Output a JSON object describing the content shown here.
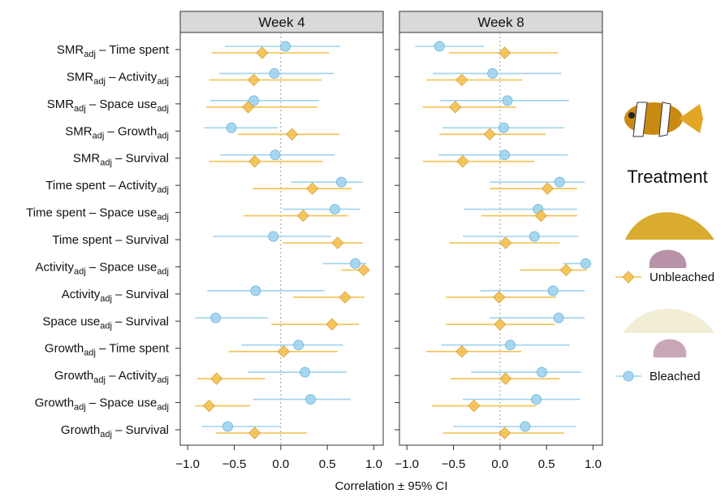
{
  "chart_data": {
    "type": "forest",
    "categories": [
      {
        "from": [
          "SMR",
          "adj"
        ],
        "sep": "–",
        "to": [
          "Time spent"
        ]
      },
      {
        "from": [
          "SMR",
          "adj"
        ],
        "sep": "–",
        "to": [
          "Activity",
          "adj"
        ]
      },
      {
        "from": [
          "SMR",
          "adj"
        ],
        "sep": "–",
        "to": [
          "Space use",
          "adj"
        ]
      },
      {
        "from": [
          "SMR",
          "adj"
        ],
        "sep": "–",
        "to": [
          "Growth",
          "adj"
        ]
      },
      {
        "from": [
          "SMR",
          "adj"
        ],
        "sep": "–",
        "to": [
          "Survival"
        ]
      },
      {
        "from": [
          "Time spent"
        ],
        "sep": "–",
        "to": [
          "Activity",
          "adj"
        ]
      },
      {
        "from": [
          "Time spent"
        ],
        "sep": "–",
        "to": [
          "Space use",
          "adj"
        ]
      },
      {
        "from": [
          "Time spent"
        ],
        "sep": "–",
        "to": [
          "Survival"
        ]
      },
      {
        "from": [
          "Activity",
          "adj"
        ],
        "sep": "–",
        "to": [
          "Space use",
          "adj"
        ]
      },
      {
        "from": [
          "Activity",
          "adj"
        ],
        "sep": "–",
        "to": [
          "Survival"
        ]
      },
      {
        "from": [
          "Space use",
          "adj"
        ],
        "sep": "–",
        "to": [
          "Survival"
        ]
      },
      {
        "from": [
          "Growth",
          "adj"
        ],
        "sep": "–",
        "to": [
          "Time spent"
        ]
      },
      {
        "from": [
          "Growth",
          "adj"
        ],
        "sep": "–",
        "to": [
          "Activity",
          "adj"
        ]
      },
      {
        "from": [
          "Growth",
          "adj"
        ],
        "sep": "–",
        "to": [
          "Space use",
          "adj"
        ]
      },
      {
        "from": [
          "Growth",
          "adj"
        ],
        "sep": "–",
        "to": [
          "Survival"
        ]
      }
    ],
    "series": [
      {
        "name": "Bleached",
        "color": "#9fd3ef",
        "marker": "circle"
      },
      {
        "name": "Unbleached",
        "color": "#f4c150",
        "marker": "diamond"
      }
    ],
    "legend_title": "Treatment",
    "xlabel": "Correlation ± 95% CI",
    "xlim": [
      -1.08,
      1.1
    ],
    "xticks": [
      {
        "value": -1,
        "label": "−1.0"
      },
      {
        "value": -0.5,
        "label": "−0.5"
      },
      {
        "value": 0,
        "label": "0.0"
      },
      {
        "value": 0.5,
        "label": "0.5"
      },
      {
        "value": 1,
        "label": "1.0"
      }
    ],
    "facets": [
      {
        "title": "Week 4",
        "series": [
          {
            "values": [
              0.05,
              -0.07,
              -0.29,
              -0.53,
              -0.06,
              0.65,
              0.58,
              -0.08,
              0.8,
              -0.27,
              -0.7,
              0.19,
              0.26,
              0.32,
              -0.57
            ],
            "lower": [
              -0.6,
              -0.66,
              -0.76,
              -0.82,
              -0.65,
              0.11,
              0.02,
              -0.73,
              0.45,
              -0.79,
              -0.92,
              -0.42,
              -0.35,
              -0.3,
              -0.85
            ],
            "upper": [
              0.64,
              0.57,
              0.41,
              -0.03,
              0.58,
              0.88,
              0.85,
              0.54,
              0.92,
              0.47,
              -0.14,
              0.67,
              0.71,
              0.75,
              0.0
            ]
          },
          {
            "values": [
              -0.2,
              -0.29,
              -0.35,
              0.12,
              -0.28,
              0.34,
              0.24,
              0.61,
              0.89,
              0.69,
              0.55,
              0.03,
              -0.69,
              -0.77,
              -0.28
            ],
            "lower": [
              -0.74,
              -0.77,
              -0.8,
              -0.46,
              -0.77,
              -0.3,
              -0.4,
              0.02,
              0.65,
              0.13,
              -0.1,
              -0.56,
              -0.9,
              -0.92,
              -0.7
            ],
            "upper": [
              0.52,
              0.44,
              0.39,
              0.63,
              0.45,
              0.76,
              0.72,
              0.88,
              0.95,
              0.9,
              0.84,
              0.61,
              -0.17,
              -0.33,
              0.28
            ]
          }
        ]
      },
      {
        "title": "Week 8",
        "series": [
          {
            "values": [
              -0.65,
              -0.08,
              0.08,
              0.04,
              0.05,
              0.64,
              0.41,
              0.37,
              0.92,
              0.57,
              0.63,
              0.11,
              0.45,
              0.39,
              0.27
            ],
            "lower": [
              -0.91,
              -0.72,
              -0.64,
              -0.62,
              -0.66,
              -0.11,
              -0.39,
              -0.4,
              0.68,
              -0.21,
              -0.11,
              -0.63,
              -0.31,
              -0.4,
              -0.5
            ],
            "upper": [
              -0.17,
              0.66,
              0.74,
              0.69,
              0.73,
              0.91,
              0.83,
              0.84,
              0.98,
              0.91,
              0.91,
              0.75,
              0.87,
              0.86,
              0.82
            ]
          },
          {
            "values": [
              0.05,
              -0.41,
              -0.48,
              -0.11,
              -0.4,
              0.51,
              0.44,
              0.06,
              0.71,
              -0.01,
              0.0,
              -0.41,
              0.06,
              -0.28,
              0.05
            ],
            "lower": [
              -0.55,
              -0.79,
              -0.83,
              -0.65,
              -0.83,
              -0.11,
              -0.2,
              -0.54,
              0.21,
              -0.58,
              -0.58,
              -0.79,
              -0.53,
              -0.73,
              -0.61
            ],
            "upper": [
              0.62,
              0.24,
              0.17,
              0.49,
              0.37,
              0.83,
              0.83,
              0.64,
              0.93,
              0.6,
              0.59,
              0.23,
              0.64,
              0.39,
              0.69
            ]
          }
        ]
      }
    ]
  }
}
